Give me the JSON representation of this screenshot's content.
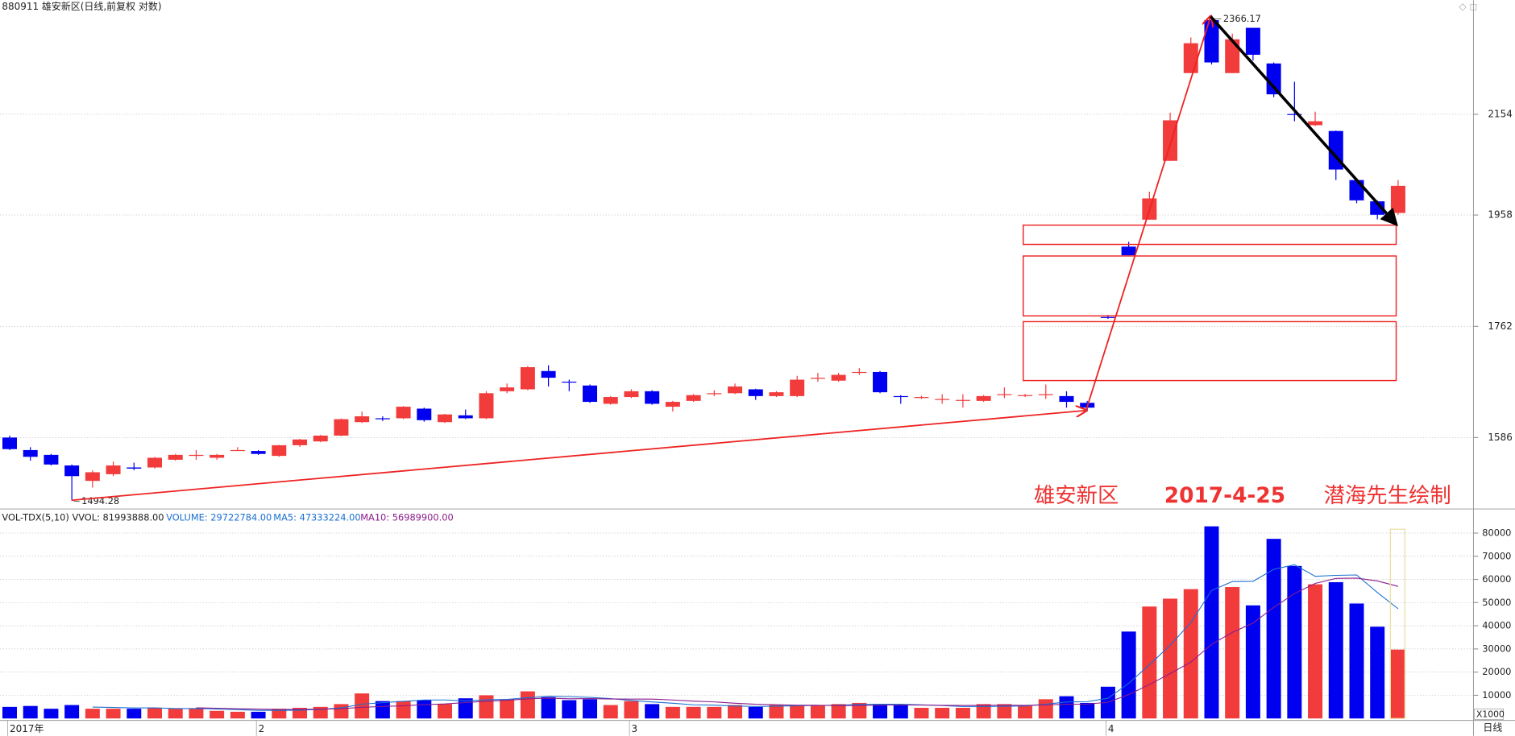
{
  "chart_data": [
    {
      "type": "candlestick",
      "title": "880911 雄安新区(日线,前复权 对数)",
      "categories": [
        "2017年",
        null,
        null,
        null,
        null,
        null,
        null,
        null,
        null,
        null,
        null,
        null,
        "2",
        null,
        null,
        null,
        null,
        null,
        null,
        null,
        null,
        null,
        null,
        null,
        null,
        null,
        null,
        null,
        null,
        null,
        "3",
        null,
        null,
        null,
        null,
        null,
        null,
        null,
        null,
        null,
        null,
        null,
        null,
        null,
        null,
        null,
        null,
        null,
        null,
        null,
        null,
        null,
        null,
        "4",
        null,
        null,
        null,
        null,
        null,
        null,
        null,
        null,
        null,
        null,
        null,
        null,
        null,
        null
      ],
      "open": [
        1586,
        1567.3,
        1560.2,
        1544.6,
        1522.2,
        1531.9,
        1541.7,
        1541.7,
        1553,
        1558.7,
        1555.9,
        1566,
        1565.9,
        1558.7,
        1574.5,
        1580.2,
        1588.9,
        1609.3,
        1615.2,
        1615.2,
        1630,
        1609.3,
        1619.7,
        1615.2,
        1657.1,
        1660.1,
        1689.1,
        1672.2,
        1666.1,
        1637.5,
        1648,
        1657.1,
        1633,
        1642,
        1653,
        1654,
        1660.1,
        1649.5,
        1649.5,
        1677,
        1673.8,
        1686.1,
        1687.6,
        1649.5,
        1647,
        1644,
        1643,
        1642,
        1652,
        1650,
        1651.8,
        1649.5,
        1639,
        1777.7,
        1900.3,
        1949.4,
        2061.1,
        2239.7,
        2354.9,
        2239.7,
        2337.8,
        2260.2,
        2154.5,
        2131.9,
        2120.2,
        2023.9,
        1983.6,
        1961.9
      ],
      "high": [
        1588.9,
        1571.6,
        1561.6,
        1546,
        1537.5,
        1550.2,
        1548.8,
        1557.3,
        1561.6,
        1567.3,
        1561.6,
        1571.6,
        1567.3,
        1575,
        1584,
        1590,
        1615,
        1625.6,
        1618.2,
        1634,
        1631.5,
        1622,
        1628.6,
        1657.1,
        1669.2,
        1697,
        1698.4,
        1675.3,
        1667.7,
        1649.5,
        1660.1,
        1658.6,
        1642,
        1652.5,
        1658.6,
        1669.2,
        1661,
        1657.1,
        1681.4,
        1686.1,
        1686.1,
        1693.8,
        1689.1,
        1651,
        1650,
        1652.5,
        1652.5,
        1651,
        1663.1,
        1653,
        1667.7,
        1657.1,
        1642,
        1781.1,
        1908.9,
        2001.8,
        2157.4,
        2316.6,
        2366.17,
        2324.9,
        2337.8,
        2262.4,
        2221.4,
        2159.3,
        2121,
        2025,
        1985.4,
        2023.9
      ],
      "low": [
        1567.3,
        1551.6,
        1544.6,
        1494.28,
        1512.5,
        1529.1,
        1537.5,
        1540,
        1551.6,
        1553,
        1553,
        1565.9,
        1560.2,
        1557.3,
        1572,
        1579,
        1588,
        1607.9,
        1611,
        1614,
        1610,
        1608,
        1614,
        1614,
        1654,
        1658.6,
        1664.6,
        1657.1,
        1639,
        1636,
        1646.5,
        1636,
        1625.6,
        1640.5,
        1649.5,
        1652.5,
        1643.5,
        1648,
        1648,
        1672.2,
        1672.2,
        1683,
        1654,
        1637.5,
        1645,
        1637.5,
        1631.5,
        1640.5,
        1646.5,
        1648,
        1645,
        1631.5,
        1625.6,
        1774.5,
        1884.8,
        1949.4,
        2061.1,
        2239.7,
        2258.1,
        2239.7,
        2266.5,
        2189.2,
        2139.8,
        2130,
        2023.9,
        1980,
        1950,
        1958.4
      ],
      "close": [
        1568.7,
        1557.3,
        1546,
        1529.1,
        1534.7,
        1544.6,
        1540,
        1555.9,
        1560.2,
        1560.2,
        1560.2,
        1567.3,
        1561.6,
        1574.5,
        1583.1,
        1588.9,
        1613.8,
        1618.2,
        1614,
        1633,
        1612.3,
        1621.1,
        1615.2,
        1654,
        1663.1,
        1695.3,
        1678.4,
        1671,
        1640.5,
        1648,
        1657.1,
        1637.5,
        1640.5,
        1651,
        1654,
        1664.6,
        1649.5,
        1655.5,
        1675.3,
        1678.4,
        1683,
        1687.6,
        1655.5,
        1648.5,
        1648,
        1645,
        1643.5,
        1649.5,
        1652.5,
        1651,
        1652.5,
        1640.5,
        1631.5,
        1776,
        1884.8,
        1989,
        2141.7,
        2303.9,
        2262.4,
        2312.4,
        2278.9,
        2195.1,
        2153.5,
        2139.8,
        2044.2,
        1985.4,
        1958.4,
        2012.8
      ],
      "up_color": "#f23b3b",
      "down_color": "#0000f0",
      "ylim": [
        1485,
        2378
      ],
      "yticks": [
        1586,
        1762,
        1958,
        2154
      ],
      "log": true,
      "grid": true,
      "annotations": [
        "雄安新区",
        "2017-4-25",
        "潜海先生绘制"
      ],
      "period": "日线"
    },
    {
      "type": "bar",
      "indicator": "VOL-TDX(5,10) VVOL: 81993888.00",
      "unit": "X1000",
      "ylim": [
        0,
        82900
      ],
      "yticks": [
        10000,
        20000,
        30000,
        40000,
        50000,
        60000,
        70000,
        80000
      ],
      "grid": true,
      "series": [
        {
          "name": "VOLUME: 29722784.00",
          "color": "#1a6fd1",
          "values": [
            5000,
            5400,
            4200,
            5800,
            4200,
            4200,
            4200,
            4600,
            4200,
            4200,
            3300,
            2900,
            2900,
            4200,
            4600,
            5000,
            6200,
            10800,
            7500,
            7500,
            7900,
            6200,
            8700,
            10000,
            8300,
            11700,
            9200,
            7900,
            8300,
            5800,
            7500,
            6200,
            5000,
            5000,
            5000,
            5800,
            5000,
            5800,
            5800,
            5800,
            6200,
            6700,
            6200,
            5800,
            4600,
            4600,
            4600,
            6200,
            6200,
            5400,
            8300,
            9600,
            6700,
            13700,
            37500,
            48300,
            51700,
            55800,
            82900,
            56700,
            48800,
            77500,
            65800,
            57900,
            58800,
            49600,
            39600,
            29722.784
          ]
        },
        {
          "name": "MA5: 47333224.00",
          "color": "#1a6fd1",
          "values": [
            null,
            null,
            null,
            null,
            4920,
            4760,
            4520,
            4600,
            4280,
            4280,
            4100,
            3840,
            3500,
            3500,
            3580,
            3920,
            4580,
            6160,
            6820,
            7400,
            7980,
            7980,
            7560,
            8060,
            8220,
            8980,
            9580,
            9420,
            9080,
            8580,
            7740,
            7140,
            6560,
            5900,
            5740,
            5400,
            5160,
            5320,
            5480,
            5640,
            5720,
            6060,
            6140,
            6140,
            5900,
            5580,
            5160,
            5160,
            5240,
            5400,
            6140,
            7140,
            7240,
            8740,
            15160,
            23160,
            31580,
            41400,
            55240,
            59080,
            59180,
            64340,
            66340,
            61340,
            61760,
            61920,
            54340,
            47333.224
          ]
        },
        {
          "name": "MA10: 56989900.00",
          "color": "#8b1c8b",
          "values": [
            null,
            null,
            null,
            null,
            null,
            null,
            null,
            null,
            null,
            4600,
            4430,
            4180,
            4050,
            3890,
            3930,
            4010,
            4210,
            4830,
            5160,
            5490,
            5950,
            6280,
            6860,
            7440,
            7810,
            8480,
            8780,
            8490,
            8570,
            8400,
            8360,
            8360,
            7990,
            7490,
            7160,
            6570,
            6150,
            5940,
            5690,
            5690,
            5560,
            5610,
            5730,
            5810,
            5770,
            5650,
            5610,
            5650,
            5690,
            5650,
            5860,
            6150,
            6200,
            6990,
            10280,
            14650,
            19360,
            24320,
            31990,
            37120,
            41170,
            47960,
            53870,
            58290,
            60420,
            60550,
            59340,
            56989.9
          ]
        }
      ]
    }
  ]
}
